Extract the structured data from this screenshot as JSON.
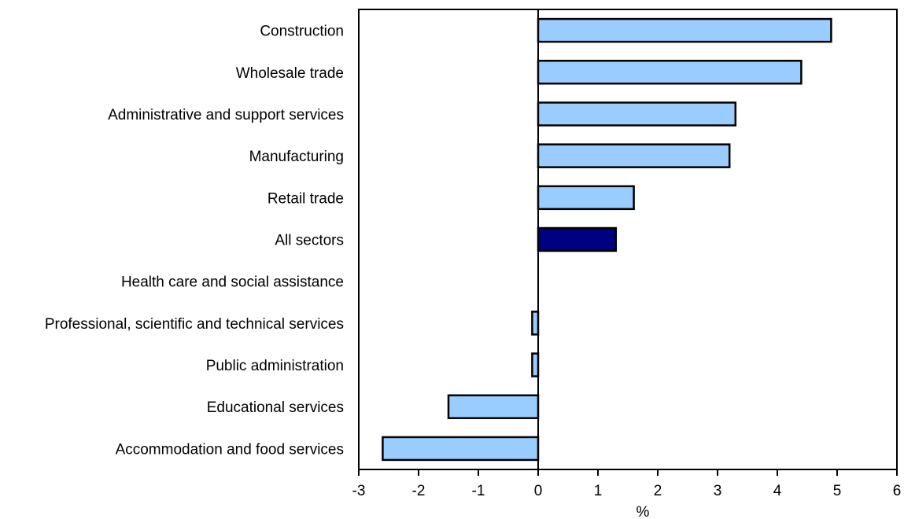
{
  "chart_data": {
    "type": "bar",
    "orientation": "horizontal",
    "categories": [
      "Construction",
      "Wholesale trade",
      "Administrative and support services",
      "Manufacturing",
      "Retail trade",
      "All sectors",
      "Health care and social assistance",
      "Professional, scientific and technical services",
      "Public administration",
      "Educational services",
      "Accommodation and food services"
    ],
    "values": [
      4.9,
      4.4,
      3.3,
      3.2,
      1.6,
      1.3,
      0.0,
      -0.1,
      -0.1,
      -1.5,
      -2.6
    ],
    "highlight_category": "All sectors",
    "xlabel": "%",
    "xlim": [
      -3,
      6
    ],
    "xticks": [
      "-3",
      "-2",
      "-1",
      "0",
      "1",
      "2",
      "3",
      "4",
      "5",
      "6"
    ],
    "grid": false,
    "legend": "none",
    "colors": {
      "bar": "#99ccff",
      "highlight": "#000080",
      "outline": "#000000"
    }
  }
}
